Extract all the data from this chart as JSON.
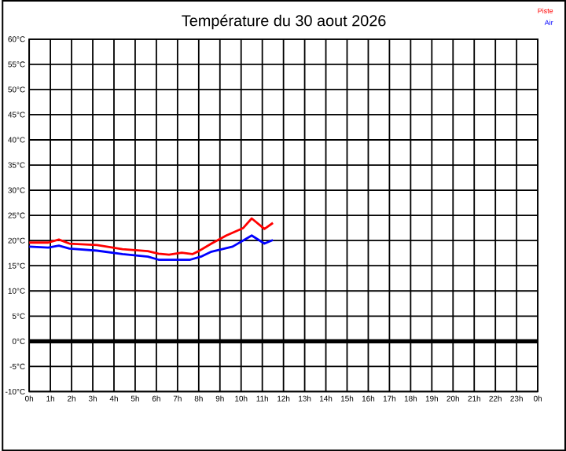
{
  "chart_data": {
    "type": "line",
    "title": "Température du 30 aout 2026",
    "xlim": [
      "2026-08-30T00:00",
      "2026-08-31T00:00"
    ],
    "xticks": [
      {
        "value": "2026-08-30T00:00",
        "label": "0h"
      },
      {
        "value": "2026-08-30T01:00",
        "label": "1h"
      },
      {
        "value": "2026-08-30T02:00",
        "label": "2h"
      },
      {
        "value": "2026-08-30T03:00",
        "label": "3h"
      },
      {
        "value": "2026-08-30T04:00",
        "label": "4h"
      },
      {
        "value": "2026-08-30T05:00",
        "label": "5h"
      },
      {
        "value": "2026-08-30T06:00",
        "label": "6h"
      },
      {
        "value": "2026-08-30T07:00",
        "label": "7h"
      },
      {
        "value": "2026-08-30T08:00",
        "label": "8h"
      },
      {
        "value": "2026-08-30T09:00",
        "label": "9h"
      },
      {
        "value": "2026-08-30T10:00",
        "label": "10h"
      },
      {
        "value": "2026-08-30T11:00",
        "label": "11h"
      },
      {
        "value": "2026-08-30T12:00",
        "label": "12h"
      },
      {
        "value": "2026-08-30T13:00",
        "label": "13h"
      },
      {
        "value": "2026-08-30T14:00",
        "label": "14h"
      },
      {
        "value": "2026-08-30T15:00",
        "label": "15h"
      },
      {
        "value": "2026-08-30T16:00",
        "label": "16h"
      },
      {
        "value": "2026-08-30T17:00",
        "label": "17h"
      },
      {
        "value": "2026-08-30T18:00",
        "label": "18h"
      },
      {
        "value": "2026-08-30T19:00",
        "label": "19h"
      },
      {
        "value": "2026-08-30T20:00",
        "label": "20h"
      },
      {
        "value": "2026-08-30T21:00",
        "label": "21h"
      },
      {
        "value": "2026-08-30T22:00",
        "label": "22h"
      },
      {
        "value": "2026-08-30T23:00",
        "label": "23h"
      },
      {
        "value": "2026-08-31T00:00",
        "label": "0h"
      }
    ],
    "ylim": [
      -10,
      60
    ],
    "yticks": [
      {
        "value": -10,
        "label": "-10°C"
      },
      {
        "value": -5,
        "label": "-5°C"
      },
      {
        "value": 0,
        "label": "0°C"
      },
      {
        "value": 5,
        "label": "5°C"
      },
      {
        "value": 10,
        "label": "10°C"
      },
      {
        "value": 15,
        "label": "15°C"
      },
      {
        "value": 20,
        "label": "20°C"
      },
      {
        "value": 25,
        "label": "25°C"
      },
      {
        "value": 30,
        "label": "30°C"
      },
      {
        "value": 35,
        "label": "35°C"
      },
      {
        "value": 40,
        "label": "40°C"
      },
      {
        "value": 45,
        "label": "45°C"
      },
      {
        "value": 50,
        "label": "50°C"
      },
      {
        "value": 55,
        "label": "55°C"
      },
      {
        "value": 60,
        "label": "60°C"
      }
    ],
    "grid": true,
    "legend": "top right",
    "marker": "none",
    "line_style": "solid",
    "ref_lines": [
      {
        "axis": "y",
        "value": 0,
        "color": "#000000"
      }
    ],
    "series": [
      {
        "name": "Piste",
        "color": "#ff0000",
        "x": [
          "2026-08-30T00:00",
          "2026-08-30T00:54",
          "2026-08-30T01:24",
          "2026-08-30T01:54",
          "2026-08-30T03:12",
          "2026-08-30T04:24",
          "2026-08-30T05:36",
          "2026-08-30T06:06",
          "2026-08-30T06:36",
          "2026-08-30T07:12",
          "2026-08-30T07:42",
          "2026-08-30T08:00",
          "2026-08-30T08:36",
          "2026-08-30T09:18",
          "2026-08-30T10:06",
          "2026-08-30T10:30",
          "2026-08-30T11:06",
          "2026-08-30T11:30"
        ],
        "values": [
          19.6,
          19.6,
          20.2,
          19.4,
          19.1,
          18.3,
          17.9,
          17.4,
          17.2,
          17.6,
          17.3,
          17.9,
          19.4,
          21,
          22.5,
          24.4,
          22.3,
          23.5
        ]
      },
      {
        "name": "Air",
        "color": "#0000ff",
        "x": [
          "2026-08-30T00:00",
          "2026-08-30T00:54",
          "2026-08-30T01:24",
          "2026-08-30T01:54",
          "2026-08-30T03:12",
          "2026-08-30T04:24",
          "2026-08-30T05:36",
          "2026-08-30T06:06",
          "2026-08-30T07:36",
          "2026-08-30T08:06",
          "2026-08-30T08:36",
          "2026-08-30T09:36",
          "2026-08-30T10:30",
          "2026-08-30T11:06",
          "2026-08-30T11:30"
        ],
        "values": [
          18.8,
          18.6,
          19,
          18.4,
          18,
          17.3,
          16.8,
          16.2,
          16.2,
          16.8,
          17.8,
          18.8,
          21,
          19.4,
          20.1
        ]
      }
    ]
  }
}
